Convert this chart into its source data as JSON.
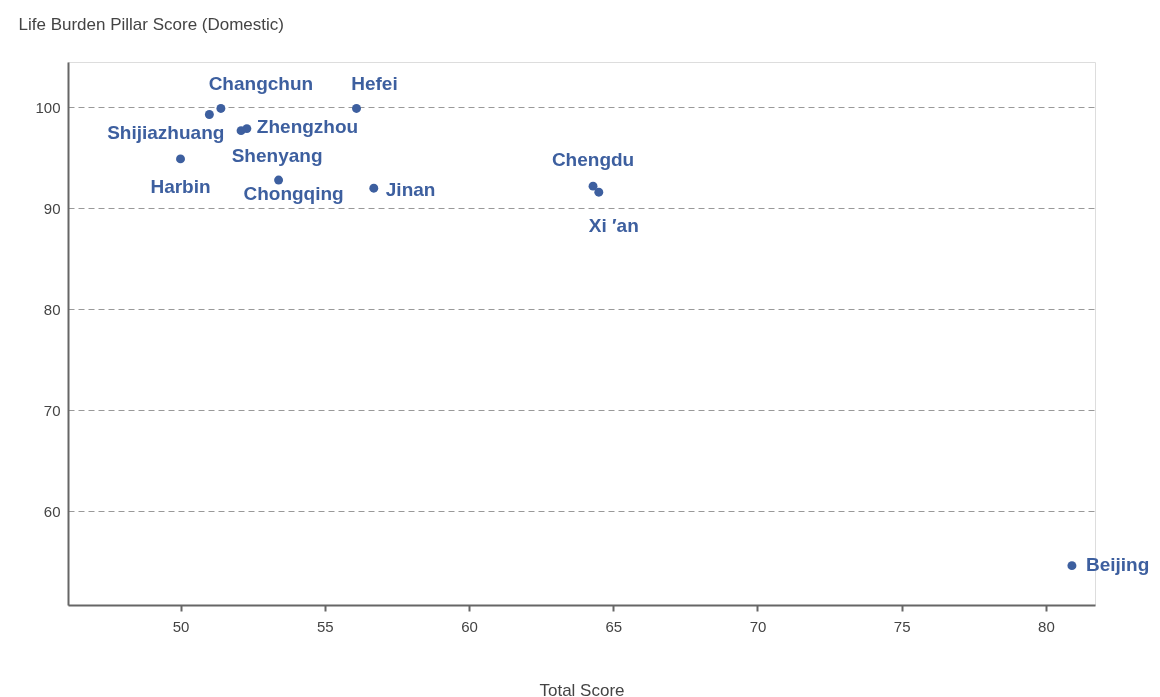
{
  "chart_data": {
    "type": "scatter",
    "xlabel": "Total Score",
    "ylabel": "Life Burden Pillar Score (Domestic)",
    "xlim": [
      46.1,
      81.7
    ],
    "ylim": [
      50.7,
      104.5
    ],
    "xticks": [
      50,
      55,
      60,
      65,
      70,
      75,
      80
    ],
    "yticks": [
      60,
      70,
      80,
      90,
      100
    ],
    "grid": "y",
    "legend": false,
    "marker": "circle",
    "series": [
      {
        "name": "Changchun",
        "color": "#3d5f9f",
        "x": [
          51.4
        ],
        "values": [
          99.9
        ]
      },
      {
        "name": "Shijiazhuang",
        "color": "#3d5f9f",
        "x": [
          51.0
        ],
        "values": [
          99.3
        ]
      },
      {
        "name": "Hefei",
        "color": "#3d5f9f",
        "x": [
          56.1
        ],
        "values": [
          99.9
        ]
      },
      {
        "name": "Zhengzhou",
        "color": "#3d5f9f",
        "x": [
          52.3
        ],
        "values": [
          97.9
        ]
      },
      {
        "name": "Shenyang",
        "color": "#3d5f9f",
        "x": [
          52.1
        ],
        "values": [
          97.7
        ]
      },
      {
        "name": "Harbin",
        "color": "#3d5f9f",
        "x": [
          50.0
        ],
        "values": [
          94.9
        ]
      },
      {
        "name": "Chongqing",
        "color": "#3d5f9f",
        "x": [
          53.4
        ],
        "values": [
          92.8
        ]
      },
      {
        "name": "Jinan",
        "color": "#3d5f9f",
        "x": [
          56.7
        ],
        "values": [
          92.0
        ]
      },
      {
        "name": "Chengdu",
        "color": "#3d5f9f",
        "x": [
          64.3
        ],
        "values": [
          92.2
        ]
      },
      {
        "name": "Xi ′an",
        "color": "#3d5f9f",
        "x": [
          64.5
        ],
        "values": [
          91.6
        ]
      },
      {
        "name": "Beijing",
        "color": "#3d5f9f",
        "x": [
          80.9
        ],
        "values": [
          54.6
        ]
      }
    ]
  }
}
